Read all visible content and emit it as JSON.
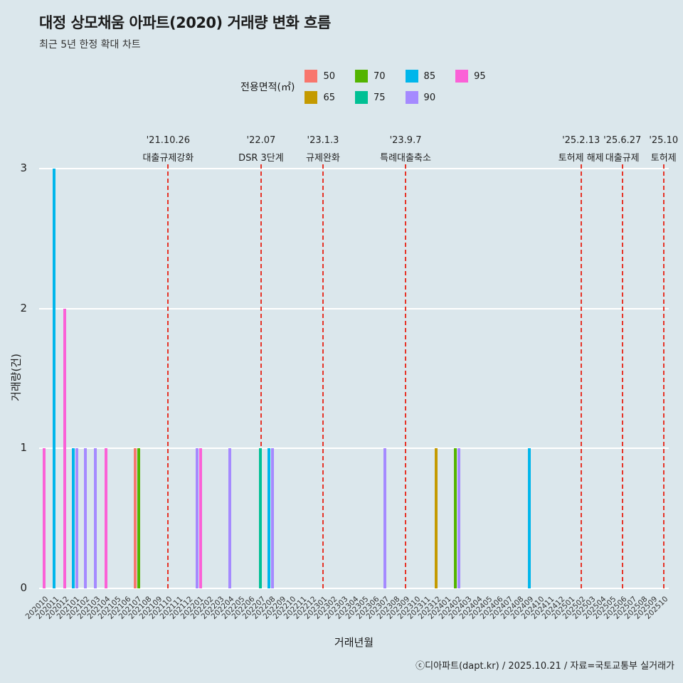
{
  "chart_data": {
    "type": "bar",
    "title": "대정 상모채움 아파트(2020) 거래량 변화 흐름",
    "subtitle": "최근 5년 한정 확대 차트",
    "legend_title": "전용면적(㎡)",
    "xlabel": "거래년월",
    "ylabel": "거래량(건)",
    "ylim": [
      0,
      3
    ],
    "yticks": [
      0,
      1,
      2,
      3
    ],
    "grid": "horizontal-white",
    "legend_position": "top",
    "colors": {
      "background": "#dbe7ec",
      "gridline": "#ffffff",
      "event_line": "#e63327",
      "text": "#1a1a1a"
    },
    "areas": [
      {
        "label": "50",
        "color": "#F8766D"
      },
      {
        "label": "65",
        "color": "#C49A00"
      },
      {
        "label": "70",
        "color": "#53B400"
      },
      {
        "label": "75",
        "color": "#00C094"
      },
      {
        "label": "85",
        "color": "#00B6EB"
      },
      {
        "label": "90",
        "color": "#A58AFF"
      },
      {
        "label": "95",
        "color": "#FB61D7"
      }
    ],
    "months": [
      "202010",
      "202011",
      "202012",
      "202101",
      "202102",
      "202103",
      "202104",
      "202105",
      "202106",
      "202107",
      "202108",
      "202109",
      "202110",
      "202111",
      "202112",
      "202201",
      "202202",
      "202203",
      "202204",
      "202205",
      "202206",
      "202207",
      "202208",
      "202209",
      "202210",
      "202211",
      "202212",
      "202301",
      "202302",
      "202303",
      "202304",
      "202305",
      "202306",
      "202307",
      "202308",
      "202309",
      "202310",
      "202311",
      "202312",
      "202401",
      "202402",
      "202403",
      "202404",
      "202405",
      "202406",
      "202407",
      "202408",
      "202409",
      "202410",
      "202411",
      "202412",
      "202501",
      "202502",
      "202503",
      "202504",
      "202505",
      "202506",
      "202507",
      "202508",
      "202509",
      "202510"
    ],
    "bars": [
      {
        "month": "202010",
        "area": "95",
        "count": 1
      },
      {
        "month": "202011",
        "area": "85",
        "count": 3
      },
      {
        "month": "202012",
        "area": "95",
        "count": 2
      },
      {
        "month": "202101",
        "area": "85",
        "count": 1
      },
      {
        "month": "202101",
        "area": "90",
        "count": 1
      },
      {
        "month": "202102",
        "area": "90",
        "count": 1
      },
      {
        "month": "202103",
        "area": "90",
        "count": 1
      },
      {
        "month": "202104",
        "area": "95",
        "count": 1
      },
      {
        "month": "202107",
        "area": "50",
        "count": 1
      },
      {
        "month": "202107",
        "area": "70",
        "count": 1
      },
      {
        "month": "202201",
        "area": "90",
        "count": 1
      },
      {
        "month": "202201",
        "area": "95",
        "count": 1
      },
      {
        "month": "202204",
        "area": "90",
        "count": 1
      },
      {
        "month": "202207",
        "area": "75",
        "count": 1
      },
      {
        "month": "202208",
        "area": "85",
        "count": 1
      },
      {
        "month": "202208",
        "area": "90",
        "count": 1
      },
      {
        "month": "202307",
        "area": "90",
        "count": 1
      },
      {
        "month": "202312",
        "area": "65",
        "count": 1
      },
      {
        "month": "202402",
        "area": "70",
        "count": 1
      },
      {
        "month": "202402",
        "area": "90",
        "count": 1
      },
      {
        "month": "202409",
        "area": "85",
        "count": 1
      }
    ],
    "events": [
      {
        "month": "202110",
        "date": "'21.10.26",
        "label": "대출규제강화"
      },
      {
        "month": "202207",
        "date": "'22.07",
        "label": "DSR 3단계"
      },
      {
        "month": "202301",
        "date": "'23.1.3",
        "label": "규제완화"
      },
      {
        "month": "202309",
        "date": "'23.9.7",
        "label": "특례대출축소"
      },
      {
        "month": "202502",
        "date": "'25.2.13",
        "label": "토허제 해제"
      },
      {
        "month": "202506",
        "date": "'25.6.27",
        "label": "대출규제"
      },
      {
        "month": "202510",
        "date": "'25.10",
        "label": "토허제"
      }
    ],
    "footer": "ⓒ디아파트(dapt.kr) / 2025.10.21 / 자료=국토교통부 실거래가"
  }
}
